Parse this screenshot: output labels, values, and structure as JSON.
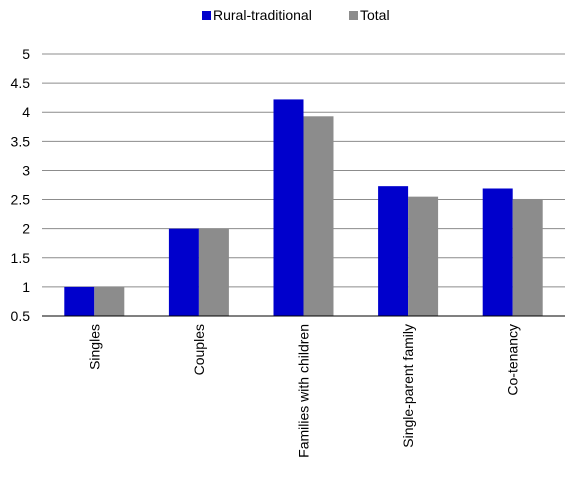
{
  "chart_data": {
    "type": "bar",
    "categories": [
      "Singles",
      "Couples",
      "Families with children",
      "Single-parent family",
      "Co-tenancy"
    ],
    "series": [
      {
        "name": "Rural-traditional",
        "color": "#0000cc",
        "values": [
          1.0,
          2.0,
          4.22,
          2.73,
          2.69
        ]
      },
      {
        "name": "Total",
        "color": "#8c8c8c",
        "values": [
          1.0,
          2.0,
          3.93,
          2.55,
          2.51
        ]
      }
    ],
    "ylim": [
      0.5,
      5
    ],
    "yticks": [
      "0.5",
      "1",
      "1.5",
      "2",
      "2.5",
      "3",
      "3.5",
      "4",
      "4.5",
      "5"
    ],
    "grid": true,
    "legend_position": "top-center",
    "gridline_color": "#8c8c8c"
  }
}
